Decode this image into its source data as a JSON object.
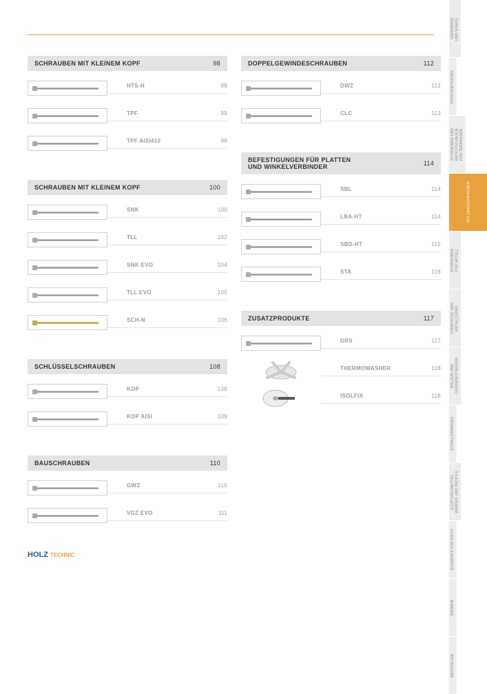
{
  "accent_color": "#e8a23d",
  "brand": {
    "part1": "HOLZ",
    "part2": "TECHNIC"
  },
  "side_tabs": [
    {
      "label": "VERBINDER\nUND WINKEL",
      "active": false
    },
    {
      "label": "PFOSTENTRÄGER",
      "active": false
    },
    {
      "label": "SCHRAUBEN UND\nBEFESTIGUNGEN\nFÜR TERRASSEN",
      "active": false
    },
    {
      "label": "HOLZBAUSCHRAUBEN",
      "active": true
    },
    {
      "label": "SCHRAUBEN\nFÜR METALL",
      "active": false
    },
    {
      "label": "CHEMISCHE UND\nMETALLDÜBEL",
      "active": false
    },
    {
      "label": "BOLZEN UND\nGEWINDESTANGEN",
      "active": false
    },
    {
      "label": "SCHALLDÄMMUNG",
      "active": false
    },
    {
      "label": "DICHTUNGSMITTEL,\nBÄNDER UND PROFILE",
      "active": false
    },
    {
      "label": "ELEMENTE FÜR DACH",
      "active": false
    },
    {
      "label": "BAHNEN",
      "active": false
    },
    {
      "label": "WERKZEUGE",
      "active": false
    }
  ],
  "left_sections": [
    {
      "title": "SCHRAUBEN MIT KLEINEM KOPF",
      "page": "98",
      "items": [
        {
          "code": "HTS-H",
          "page": "98",
          "style": "silver"
        },
        {
          "code": "TPF",
          "page": "99",
          "style": "silver"
        },
        {
          "code": "TPF AISI410",
          "page": "99",
          "style": "silver"
        }
      ]
    },
    {
      "title": "SCHRAUBEN MIT KLEINEM KOPF",
      "page": "100",
      "items": [
        {
          "code": "SNK",
          "page": "100",
          "style": "silver"
        },
        {
          "code": "TLL",
          "page": "102",
          "style": "silver"
        },
        {
          "code": "SNK EVO",
          "page": "104",
          "style": "silver"
        },
        {
          "code": "TLL EVO",
          "page": "105",
          "style": "silver"
        },
        {
          "code": "SCH-N",
          "page": "106",
          "style": "gold"
        }
      ]
    },
    {
      "title": "SCHLÜSSELSCHRAUBEN",
      "page": "108",
      "items": [
        {
          "code": "KOP",
          "page": "108",
          "style": "silver"
        },
        {
          "code": "KOP AISI",
          "page": "109",
          "style": "silver"
        }
      ]
    },
    {
      "title": "BAUSCHRAUBEN",
      "page": "110",
      "items": [
        {
          "code": "GWZ",
          "page": "110",
          "style": "silver"
        },
        {
          "code": "VGZ EVO",
          "page": "111",
          "style": "silver"
        }
      ]
    }
  ],
  "right_sections": [
    {
      "title": "DOPPELGEWINDESCHRAUBEN",
      "page": "112",
      "items": [
        {
          "code": "DWZ",
          "page": "112",
          "style": "silver"
        },
        {
          "code": "CLC",
          "page": "113",
          "style": "silver"
        }
      ]
    },
    {
      "title": "BEFESTIGUNGEN FÜR PLATTEN\nUND WINKELVERBINDER",
      "page": "114",
      "items": [
        {
          "code": "SBL",
          "page": "114",
          "style": "silver"
        },
        {
          "code": "LBA-HT",
          "page": "114",
          "style": "silver"
        },
        {
          "code": "SBD-HT",
          "page": "115",
          "style": "silver"
        },
        {
          "code": "STA",
          "page": "116",
          "style": "silver"
        }
      ]
    },
    {
      "title": "ZUSATZPRODUKTE",
      "page": "117",
      "items": [
        {
          "code": "DRS",
          "page": "117",
          "style": "silver"
        },
        {
          "code": "THERMOWASHER",
          "page": "118",
          "style": "washer1"
        },
        {
          "code": "ISOLFIX",
          "page": "118",
          "style": "washer2"
        }
      ]
    }
  ]
}
